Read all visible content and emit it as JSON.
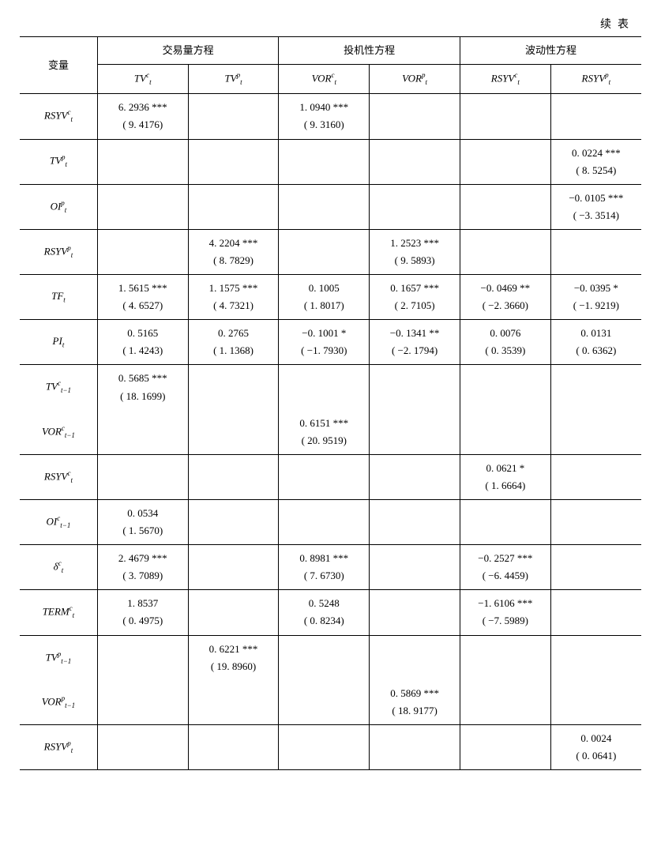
{
  "cont_label": "续表",
  "headers": {
    "variable": "变量",
    "group1": "交易量方程",
    "group2": "投机性方程",
    "group3": "波动性方程",
    "sub": [
      "TVᵗᶜ",
      "TVᵗᵖ",
      "VORᵗᶜ",
      "VORᵗᵖ",
      "RSYVᵗᶜ",
      "RSYVᵗᵖ"
    ]
  },
  "row_labels": [
    "RSYVᵗᶜ",
    "TVᵗᵖ",
    "OIᵗᵖ",
    "RSYVᵗᵖ",
    "TFₜ",
    "PIₜ",
    "TVᶜₜ₋₁",
    "VORᶜₜ₋₁",
    "RSYVᵗᶜ",
    "OIᶜₜ₋₁",
    "δᵗᶜ",
    "TERMᵗᶜ",
    "TVᵖₜ₋₁",
    "VORᵖₜ₋₁",
    "RSYVᵗᵖ"
  ],
  "cells": {
    "r0c0": {
      "v": "6. 2936 ***",
      "t": "( 9. 4176)"
    },
    "r0c2": {
      "v": "1. 0940 ***",
      "t": "( 9. 3160)"
    },
    "r1c5": {
      "v": "0. 0224 ***",
      "t": "( 8. 5254)"
    },
    "r2c5": {
      "v": "−0. 0105 ***",
      "t": "( −3. 3514)"
    },
    "r3c1": {
      "v": "4. 2204 ***",
      "t": "( 8. 7829)"
    },
    "r3c3": {
      "v": "1. 2523 ***",
      "t": "( 9. 5893)"
    },
    "r4c0": {
      "v": "1. 5615 ***",
      "t": "( 4. 6527)"
    },
    "r4c1": {
      "v": "1. 1575 ***",
      "t": "( 4. 7321)"
    },
    "r4c2": {
      "v": "0. 1005",
      "t": "( 1. 8017)"
    },
    "r4c3": {
      "v": "0. 1657 ***",
      "t": "( 2. 7105)"
    },
    "r4c4": {
      "v": "−0. 0469 **",
      "t": "( −2. 3660)"
    },
    "r4c5": {
      "v": "−0. 0395 *",
      "t": "( −1. 9219)"
    },
    "r5c0": {
      "v": "0. 5165",
      "t": "( 1. 4243)"
    },
    "r5c1": {
      "v": "0. 2765",
      "t": "( 1. 1368)"
    },
    "r5c2": {
      "v": "−0. 1001 *",
      "t": "( −1. 7930)"
    },
    "r5c3": {
      "v": "−0. 1341 **",
      "t": "( −2. 1794)"
    },
    "r5c4": {
      "v": "0. 0076",
      "t": "( 0. 3539)"
    },
    "r5c5": {
      "v": "0. 0131",
      "t": "( 0. 6362)"
    },
    "r6c0": {
      "v": "0. 5685 ***",
      "t": "( 18. 1699)"
    },
    "r7c2": {
      "v": "0. 6151 ***",
      "t": "( 20. 9519)"
    },
    "r8c4": {
      "v": "0. 0621 *",
      "t": "( 1. 6664)"
    },
    "r9c0": {
      "v": "0. 0534",
      "t": "( 1. 5670)"
    },
    "r10c0": {
      "v": "2. 4679 ***",
      "t": "( 3. 7089)"
    },
    "r10c2": {
      "v": "0. 8981 ***",
      "t": "( 7. 6730)"
    },
    "r10c4": {
      "v": "−0. 2527 ***",
      "t": "( −6. 4459)"
    },
    "r11c0": {
      "v": "1. 8537",
      "t": "( 0. 4975)"
    },
    "r11c2": {
      "v": "0. 5248",
      "t": "( 0. 8234)"
    },
    "r11c4": {
      "v": "−1. 6106 ***",
      "t": "( −7. 5989)"
    },
    "r12c1": {
      "v": "0. 6221 ***",
      "t": "( 19. 8960)"
    },
    "r13c3": {
      "v": "0. 5869 ***",
      "t": "( 18. 9177)"
    },
    "r14c5": {
      "v": "0. 0024",
      "t": "( 0. 0641)"
    }
  },
  "style": {
    "background_color": "#ffffff",
    "text_color": "#000000",
    "border_color": "#000000",
    "font_size_body": 13,
    "font_size_script": 9,
    "line_height": 1.7,
    "columns": 7,
    "var_col_width_pct": 12.5,
    "data_col_width_pct": 14.58,
    "table_type": "regression-results"
  }
}
